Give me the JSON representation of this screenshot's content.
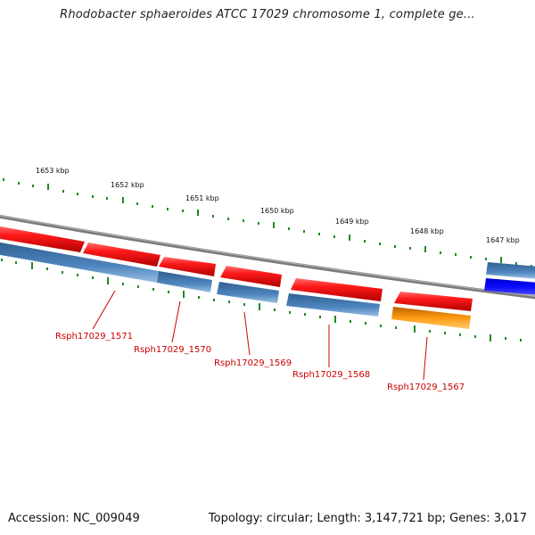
{
  "title": "Rhodobacter sphaeroides ATCC 17029 chromosome 1, complete ge...",
  "footer": {
    "accession": "Accession: NC_009049",
    "summary": "Topology: circular; Length: 3,147,721 bp; Genes: 3,017"
  },
  "colors": {
    "forward_gene": "#ee1111",
    "reverse_gene": "#4a7fb5",
    "highlight_gene": "#f08a00",
    "selected_gene": "#0000ee",
    "backbone": "#888888",
    "tick": "#228822",
    "label": "#cc0000"
  },
  "scale_labels": [
    "1653 kbp",
    "1652 kbp",
    "1651 kbp",
    "1650 kbp",
    "1649 kbp",
    "1648 kbp",
    "1647 kbp"
  ],
  "gene_labels": [
    "Rsph17029_1571",
    "Rsph17029_1570",
    "Rsph17029_1569",
    "Rsph17029_1568",
    "Rsph17029_1567"
  ]
}
